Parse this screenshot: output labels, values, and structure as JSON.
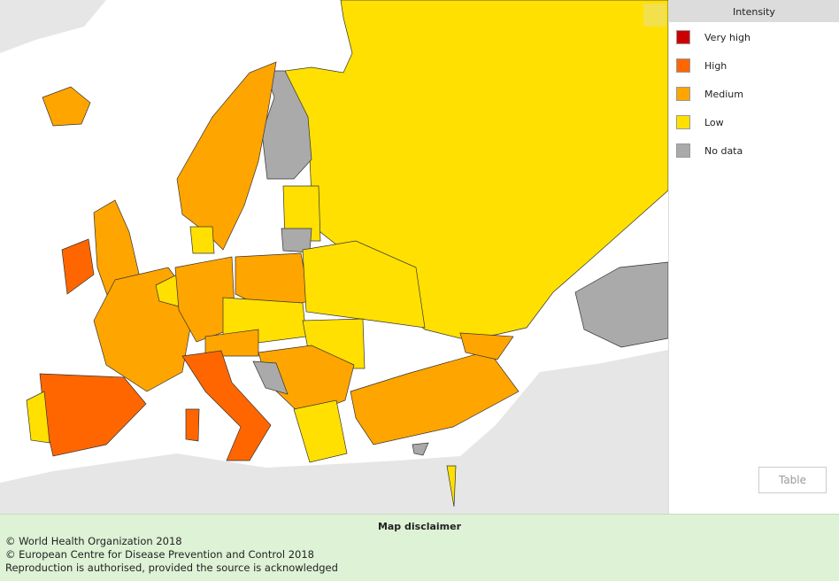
{
  "legend": {
    "title": "Intensity",
    "items": [
      {
        "label": "Very high",
        "color": "#cc0000"
      },
      {
        "label": "High",
        "color": "#ff6600"
      },
      {
        "label": "Medium",
        "color": "#ffa500"
      },
      {
        "label": "Low",
        "color": "#ffe000"
      },
      {
        "label": "No data",
        "color": "#aaaaaa"
      }
    ]
  },
  "table_button": "Table",
  "disclaimer": {
    "title": "Map disclaimer",
    "lines": [
      "© World Health Organization 2018",
      "© European Centre for Disease Prevention and Control 2018",
      "Reproduction is authorised, provided the source is acknowledged"
    ]
  }
}
